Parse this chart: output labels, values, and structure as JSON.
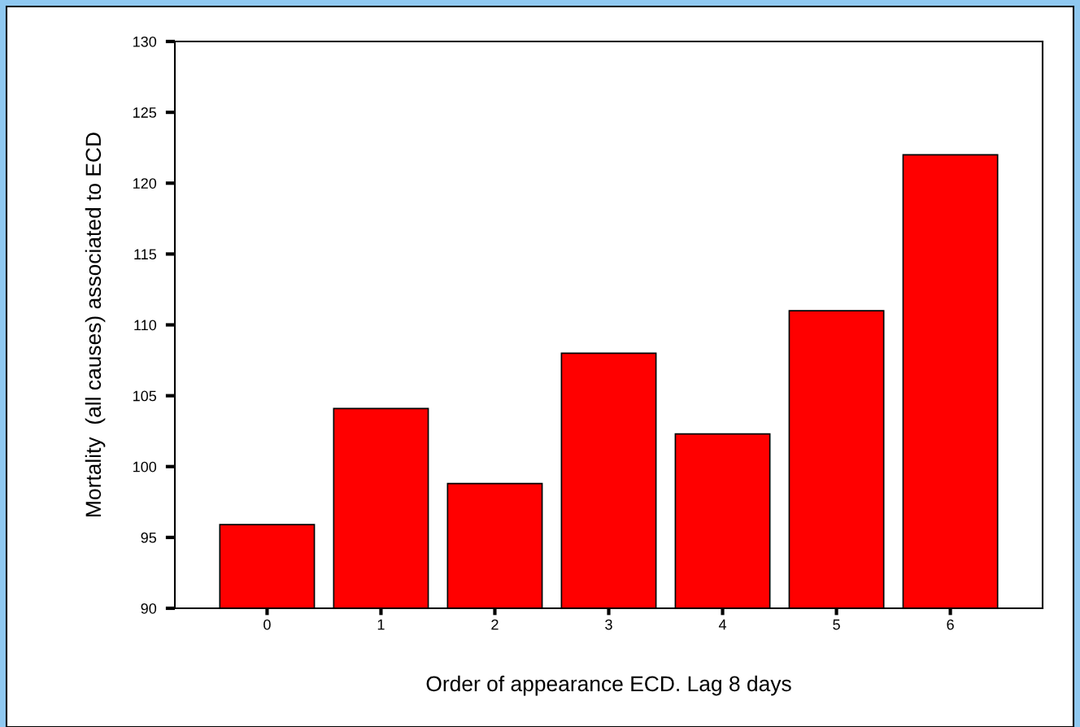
{
  "chart_data": {
    "type": "bar",
    "xlabel": "Order of appearance ECD. Lag 8 days",
    "ylabel": "Mortality  (all causes) associated to ECD",
    "categories": [
      "0",
      "1",
      "2",
      "3",
      "4",
      "5",
      "6"
    ],
    "values": [
      95.9,
      104.1,
      98.8,
      108.0,
      102.3,
      111.0,
      122.0
    ],
    "color": "#ff0000",
    "ylim": [
      90,
      130
    ],
    "yticks": [
      90,
      95,
      100,
      105,
      110,
      115,
      120,
      125,
      130
    ],
    "grid": false
  }
}
